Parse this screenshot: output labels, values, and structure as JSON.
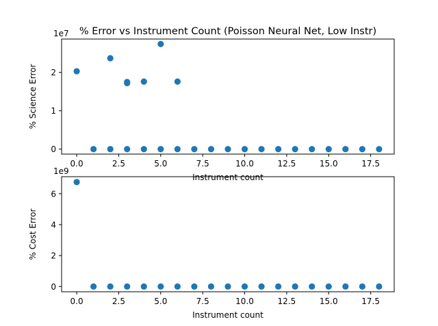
{
  "chart_data": [
    {
      "type": "scatter",
      "title": "% Error vs Instrument Count (Poisson Neural Net, Low Instr)",
      "xlabel": "Instrument count",
      "ylabel": "% Science Error",
      "y_offset_text": "1e7",
      "xlim": [
        -0.9,
        18.9
      ],
      "ylim": [
        -0.13,
        2.87
      ],
      "xticks": [
        0.0,
        2.5,
        5.0,
        7.5,
        10.0,
        12.5,
        15.0,
        17.5
      ],
      "xtick_labels": [
        "0.0",
        "2.5",
        "5.0",
        "7.5",
        "10.0",
        "12.5",
        "15.0",
        "17.5"
      ],
      "yticks": [
        0,
        1,
        2
      ],
      "ytick_labels": [
        "0",
        "1",
        "2"
      ],
      "grid": false,
      "color": "#1f77b4",
      "points": [
        [
          0,
          2.03
        ],
        [
          1,
          0
        ],
        [
          2,
          2.37
        ],
        [
          2,
          0
        ],
        [
          3,
          1.75
        ],
        [
          3,
          1.72
        ],
        [
          3,
          0
        ],
        [
          4,
          1.76
        ],
        [
          4,
          0
        ],
        [
          5,
          2.74
        ],
        [
          5,
          0
        ],
        [
          6,
          1.76
        ],
        [
          6,
          0
        ],
        [
          7,
          0
        ],
        [
          8,
          0
        ],
        [
          9,
          0
        ],
        [
          10,
          0
        ],
        [
          11,
          0
        ],
        [
          12,
          0
        ],
        [
          13,
          0
        ],
        [
          14,
          0
        ],
        [
          15,
          0
        ],
        [
          16,
          0
        ],
        [
          17,
          0
        ],
        [
          18,
          0
        ]
      ]
    },
    {
      "type": "scatter",
      "title": "",
      "xlabel": "Instrument count",
      "ylabel": "% Cost Error",
      "y_offset_text": "1e9",
      "xlim": [
        -0.9,
        18.9
      ],
      "ylim": [
        -0.34,
        7.1
      ],
      "xticks": [
        0.0,
        2.5,
        5.0,
        7.5,
        10.0,
        12.5,
        15.0,
        17.5
      ],
      "xtick_labels": [
        "0.0",
        "2.5",
        "5.0",
        "7.5",
        "10.0",
        "12.5",
        "15.0",
        "17.5"
      ],
      "yticks": [
        0,
        2,
        4,
        6
      ],
      "ytick_labels": [
        "0",
        "2",
        "4",
        "6"
      ],
      "grid": false,
      "color": "#1f77b4",
      "points": [
        [
          0,
          6.75
        ],
        [
          1,
          0
        ],
        [
          2,
          0
        ],
        [
          3,
          0
        ],
        [
          4,
          0
        ],
        [
          5,
          0
        ],
        [
          6,
          0
        ],
        [
          7,
          0
        ],
        [
          8,
          0
        ],
        [
          9,
          0
        ],
        [
          10,
          0
        ],
        [
          11,
          0
        ],
        [
          12,
          0
        ],
        [
          13,
          0
        ],
        [
          14,
          0
        ],
        [
          15,
          0
        ],
        [
          16,
          0
        ],
        [
          17,
          0
        ],
        [
          18,
          0
        ]
      ]
    }
  ]
}
